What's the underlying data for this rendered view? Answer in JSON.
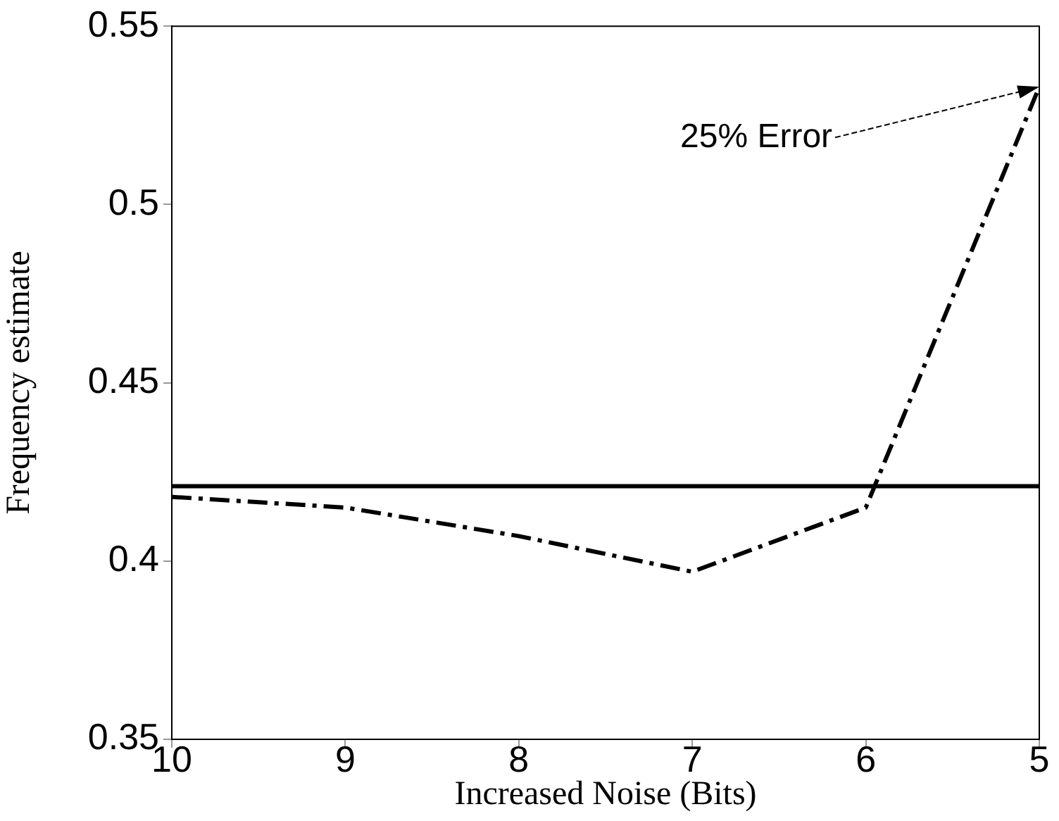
{
  "chart_data": {
    "type": "line",
    "xlabel": "Increased Noise (Bits)",
    "ylabel": "Frequency estimate",
    "x": [
      10,
      9,
      8,
      7,
      6,
      5
    ],
    "series": [
      {
        "color": "#000000",
        "x": [
          10,
          5
        ],
        "values": [
          0.421,
          0.421
        ],
        "line_style": "solid"
      },
      {
        "color": "#000000",
        "values": [
          0.418,
          0.415,
          0.407,
          0.397,
          0.415,
          0.533
        ],
        "line_style": "dashed"
      }
    ],
    "xlim": [
      10,
      5
    ],
    "xticks": [
      10,
      9,
      8,
      7,
      6,
      5
    ],
    "ylim": [
      0.35,
      0.55
    ],
    "yticks": [
      0.35,
      0.4,
      0.45,
      0.5,
      0.55
    ],
    "grid": false,
    "legend": false,
    "marker": "none",
    "annotations": [
      {
        "text": "25% Error",
        "x": 5,
        "y": 0.533
      }
    ]
  }
}
